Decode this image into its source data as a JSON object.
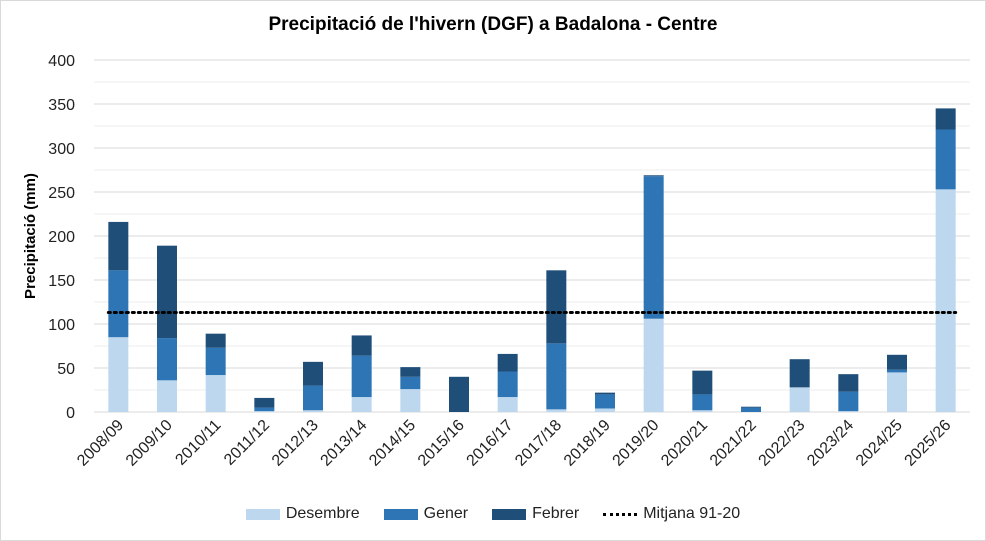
{
  "chart_data": {
    "type": "bar",
    "stacked": true,
    "title": "Precipitació de l'hivern (DGF) a Badalona - Centre",
    "xlabel": "",
    "ylabel": "Precipitació (mm)",
    "ylim": [
      0,
      400
    ],
    "yticks": [
      0,
      50,
      100,
      150,
      200,
      250,
      300,
      350,
      400
    ],
    "grid": true,
    "legend_position": "bottom",
    "categories": [
      "2008/09",
      "2009/10",
      "2010/11",
      "2011/12",
      "2012/13",
      "2013/14",
      "2014/15",
      "2015/16",
      "2016/17",
      "2017/18",
      "2018/19",
      "2019/20",
      "2020/21",
      "2021/22",
      "2022/23",
      "2023/24",
      "2024/25",
      "2025/26"
    ],
    "series": [
      {
        "name": "Desembre",
        "color": "#bdd7ee",
        "values": [
          85,
          36,
          42,
          1,
          2,
          17,
          26,
          0,
          17,
          3,
          4,
          106,
          2,
          0,
          28,
          1,
          45,
          253
        ]
      },
      {
        "name": "Gener",
        "color": "#2e75b6",
        "values": [
          76,
          48,
          31,
          4,
          28,
          47,
          14,
          0,
          29,
          75,
          16,
          162,
          18,
          5,
          0,
          22,
          3,
          68
        ]
      },
      {
        "name": "Febrer",
        "color": "#1f4e79",
        "values": [
          55,
          105,
          16,
          11,
          27,
          23,
          11,
          40,
          20,
          83,
          2,
          1,
          27,
          1,
          32,
          20,
          17,
          24
        ]
      }
    ],
    "reference_line": {
      "name": "Mitjana 91-20",
      "value": 113,
      "style": "dotted",
      "color": "#000000"
    }
  }
}
